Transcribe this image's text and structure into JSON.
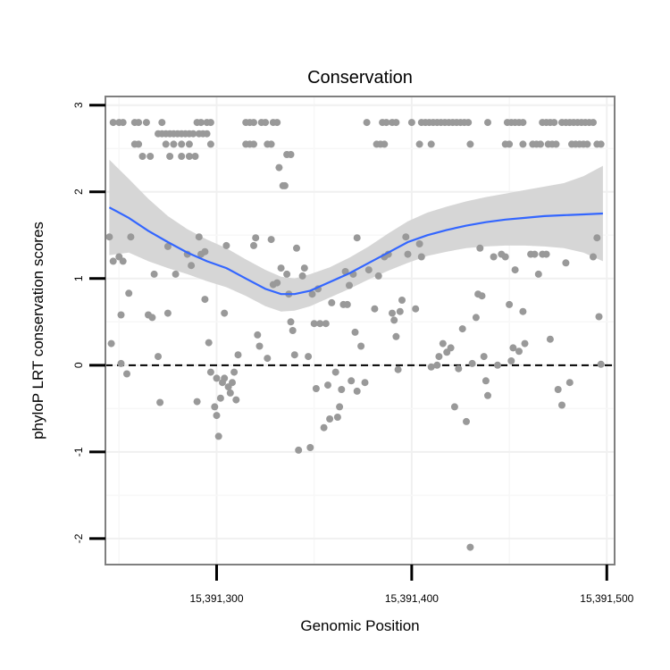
{
  "chart_data": {
    "type": "scatter",
    "title": "Conservation",
    "xlabel": "Genomic Position",
    "ylabel": "phyloP LRT conservation scores",
    "xlim": [
      15391243,
      15391504
    ],
    "ylim": [
      -2.3,
      3.1
    ],
    "x_ticks": [
      15391300,
      15391400,
      15391500
    ],
    "x_tick_labels": [
      "15,391,300",
      "15,391,400",
      "15,391,500"
    ],
    "y_ticks": [
      -2,
      -1,
      0,
      1,
      2,
      3
    ],
    "y_tick_labels": [
      "-2",
      "-1",
      "0",
      "1",
      "2",
      "3"
    ],
    "reference_line": {
      "y": 0,
      "style": "dashed"
    },
    "grid": true,
    "legend": "none",
    "colors": {
      "points": "#999999",
      "smooth": "#3366ff",
      "band": "#d4d4d4",
      "reference": "#000000",
      "frame": "#7f7f7f"
    },
    "points": [
      [
        15391247,
        2.8
      ],
      [
        15391250,
        2.8
      ],
      [
        15391252,
        2.8
      ],
      [
        15391258,
        2.8
      ],
      [
        15391260,
        2.8
      ],
      [
        15391272,
        2.8
      ],
      [
        15391290,
        2.8
      ],
      [
        15391292,
        2.8
      ],
      [
        15391295,
        2.8
      ],
      [
        15391297,
        2.8
      ],
      [
        15391315,
        2.8
      ],
      [
        15391317,
        2.8
      ],
      [
        15391319,
        2.8
      ],
      [
        15391323,
        2.8
      ],
      [
        15391325,
        2.8
      ],
      [
        15391329,
        2.8
      ],
      [
        15391331,
        2.8
      ],
      [
        15391377,
        2.8
      ],
      [
        15391385,
        2.8
      ],
      [
        15391387,
        2.8
      ],
      [
        15391390,
        2.8
      ],
      [
        15391392,
        2.8
      ],
      [
        15391400,
        2.8
      ],
      [
        15391405,
        2.8
      ],
      [
        15391407,
        2.8
      ],
      [
        15391409,
        2.8
      ],
      [
        15391411,
        2.8
      ],
      [
        15391413,
        2.8
      ],
      [
        15391415,
        2.8
      ],
      [
        15391417,
        2.8
      ],
      [
        15391419,
        2.8
      ],
      [
        15391421,
        2.8
      ],
      [
        15391423,
        2.8
      ],
      [
        15391425,
        2.8
      ],
      [
        15391427,
        2.8
      ],
      [
        15391429,
        2.8
      ],
      [
        15391439,
        2.8
      ],
      [
        15391449,
        2.8
      ],
      [
        15391451,
        2.8
      ],
      [
        15391453,
        2.8
      ],
      [
        15391455,
        2.8
      ],
      [
        15391457,
        2.8
      ],
      [
        15391467,
        2.8
      ],
      [
        15391469,
        2.8
      ],
      [
        15391471,
        2.8
      ],
      [
        15391473,
        2.8
      ],
      [
        15391477,
        2.8
      ],
      [
        15391479,
        2.8
      ],
      [
        15391481,
        2.8
      ],
      [
        15391483,
        2.8
      ],
      [
        15391485,
        2.8
      ],
      [
        15391487,
        2.8
      ],
      [
        15391489,
        2.8
      ],
      [
        15391491,
        2.8
      ],
      [
        15391493,
        2.8
      ],
      [
        15391264,
        2.8
      ],
      [
        15391270,
        2.67
      ],
      [
        15391272,
        2.67
      ],
      [
        15391274,
        2.67
      ],
      [
        15391276,
        2.67
      ],
      [
        15391278,
        2.67
      ],
      [
        15391280,
        2.67
      ],
      [
        15391282,
        2.67
      ],
      [
        15391284,
        2.67
      ],
      [
        15391286,
        2.67
      ],
      [
        15391288,
        2.67
      ],
      [
        15391291,
        2.67
      ],
      [
        15391293,
        2.67
      ],
      [
        15391295,
        2.67
      ],
      [
        15391258,
        2.55
      ],
      [
        15391260,
        2.55
      ],
      [
        15391274,
        2.55
      ],
      [
        15391278,
        2.55
      ],
      [
        15391282,
        2.55
      ],
      [
        15391286,
        2.55
      ],
      [
        15391297,
        2.55
      ],
      [
        15391315,
        2.55
      ],
      [
        15391317,
        2.55
      ],
      [
        15391319,
        2.55
      ],
      [
        15391326,
        2.55
      ],
      [
        15391328,
        2.55
      ],
      [
        15391382,
        2.55
      ],
      [
        15391384,
        2.55
      ],
      [
        15391386,
        2.55
      ],
      [
        15391404,
        2.55
      ],
      [
        15391410,
        2.55
      ],
      [
        15391430,
        2.55
      ],
      [
        15391448,
        2.55
      ],
      [
        15391450,
        2.55
      ],
      [
        15391457,
        2.55
      ],
      [
        15391462,
        2.55
      ],
      [
        15391464,
        2.55
      ],
      [
        15391466,
        2.55
      ],
      [
        15391470,
        2.55
      ],
      [
        15391472,
        2.55
      ],
      [
        15391474,
        2.55
      ],
      [
        15391482,
        2.55
      ],
      [
        15391484,
        2.55
      ],
      [
        15391486,
        2.55
      ],
      [
        15391488,
        2.55
      ],
      [
        15391490,
        2.55
      ],
      [
        15391495,
        2.55
      ],
      [
        15391497,
        2.55
      ],
      [
        15391262,
        2.41
      ],
      [
        15391266,
        2.41
      ],
      [
        15391276,
        2.41
      ],
      [
        15391282,
        2.41
      ],
      [
        15391286,
        2.41
      ],
      [
        15391289,
        2.41
      ],
      [
        15391336,
        2.43
      ],
      [
        15391338,
        2.43
      ],
      [
        15391332,
        2.28
      ],
      [
        15391334,
        2.07
      ],
      [
        15391335,
        2.07
      ],
      [
        15391245,
        1.48
      ],
      [
        15391247,
        1.2
      ],
      [
        15391250,
        1.25
      ],
      [
        15391252,
        1.2
      ],
      [
        15391256,
        1.48
      ],
      [
        15391255,
        0.83
      ],
      [
        15391251,
        0.58
      ],
      [
        15391246,
        0.25
      ],
      [
        15391251,
        0.02
      ],
      [
        15391254,
        -0.1
      ],
      [
        15391265,
        0.58
      ],
      [
        15391267,
        0.55
      ],
      [
        15391268,
        1.05
      ],
      [
        15391275,
        1.37
      ],
      [
        15391275,
        0.6
      ],
      [
        15391279,
        1.05
      ],
      [
        15391285,
        1.28
      ],
      [
        15391287,
        1.15
      ],
      [
        15391291,
        1.48
      ],
      [
        15391294,
        1.31
      ],
      [
        15391292,
        1.28
      ],
      [
        15391294,
        0.76
      ],
      [
        15391296,
        0.26
      ],
      [
        15391297,
        -0.08
      ],
      [
        15391299,
        -0.48
      ],
      [
        15391300,
        -0.58
      ],
      [
        15391301,
        -0.82
      ],
      [
        15391302,
        -0.38
      ],
      [
        15391303,
        -0.2
      ],
      [
        15391304,
        -0.15
      ],
      [
        15391305,
        1.38
      ],
      [
        15391306,
        -0.25
      ],
      [
        15391307,
        -0.32
      ],
      [
        15391308,
        -0.2
      ],
      [
        15391309,
        -0.08
      ],
      [
        15391310,
        -0.4
      ],
      [
        15391311,
        0.12
      ],
      [
        15391300,
        -0.15
      ],
      [
        15391304,
        0.6
      ],
      [
        15391290,
        -0.42
      ],
      [
        15391270,
        0.1
      ],
      [
        15391271,
        -0.43
      ],
      [
        15391319,
        1.38
      ],
      [
        15391320,
        1.47
      ],
      [
        15391321,
        0.35
      ],
      [
        15391322,
        0.22
      ],
      [
        15391326,
        0.08
      ],
      [
        15391328,
        1.45
      ],
      [
        15391329,
        0.93
      ],
      [
        15391331,
        0.95
      ],
      [
        15391333,
        1.12
      ],
      [
        15391336,
        1.05
      ],
      [
        15391337,
        0.82
      ],
      [
        15391338,
        0.5
      ],
      [
        15391339,
        0.4
      ],
      [
        15391340,
        0.12
      ],
      [
        15391341,
        1.35
      ],
      [
        15391342,
        -0.98
      ],
      [
        15391344,
        1.03
      ],
      [
        15391345,
        1.12
      ],
      [
        15391347,
        0.1
      ],
      [
        15391348,
        -0.95
      ],
      [
        15391349,
        0.82
      ],
      [
        15391350,
        0.48
      ],
      [
        15391351,
        -0.27
      ],
      [
        15391352,
        0.88
      ],
      [
        15391353,
        0.48
      ],
      [
        15391355,
        -0.72
      ],
      [
        15391356,
        0.48
      ],
      [
        15391357,
        -0.23
      ],
      [
        15391358,
        -0.62
      ],
      [
        15391359,
        0.72
      ],
      [
        15391361,
        -0.08
      ],
      [
        15391362,
        -0.6
      ],
      [
        15391363,
        -0.48
      ],
      [
        15391364,
        -0.28
      ],
      [
        15391365,
        0.7
      ],
      [
        15391366,
        1.08
      ],
      [
        15391367,
        0.7
      ],
      [
        15391368,
        0.92
      ],
      [
        15391369,
        -0.18
      ],
      [
        15391370,
        1.05
      ],
      [
        15391372,
        1.47
      ],
      [
        15391371,
        0.38
      ],
      [
        15391372,
        -0.3
      ],
      [
        15391374,
        0.22
      ],
      [
        15391376,
        -0.2
      ],
      [
        15391378,
        1.1
      ],
      [
        15391381,
        0.65
      ],
      [
        15391383,
        1.03
      ],
      [
        15391386,
        1.25
      ],
      [
        15391388,
        1.28
      ],
      [
        15391390,
        0.6
      ],
      [
        15391391,
        0.52
      ],
      [
        15391392,
        0.33
      ],
      [
        15391393,
        -0.05
      ],
      [
        15391394,
        0.62
      ],
      [
        15391395,
        0.75
      ],
      [
        15391397,
        1.48
      ],
      [
        15391398,
        1.28
      ],
      [
        15391402,
        0.65
      ],
      [
        15391404,
        1.4
      ],
      [
        15391405,
        1.25
      ],
      [
        15391410,
        -0.02
      ],
      [
        15391413,
        0.0
      ],
      [
        15391414,
        0.1
      ],
      [
        15391416,
        0.25
      ],
      [
        15391418,
        0.15
      ],
      [
        15391420,
        0.2
      ],
      [
        15391422,
        -0.48
      ],
      [
        15391424,
        -0.04
      ],
      [
        15391426,
        0.42
      ],
      [
        15391428,
        -0.65
      ],
      [
        15391430,
        -2.1
      ],
      [
        15391431,
        0.02
      ],
      [
        15391433,
        0.55
      ],
      [
        15391434,
        0.82
      ],
      [
        15391435,
        1.35
      ],
      [
        15391436,
        0.8
      ],
      [
        15391437,
        0.1
      ],
      [
        15391438,
        -0.18
      ],
      [
        15391439,
        -0.35
      ],
      [
        15391442,
        1.25
      ],
      [
        15391444,
        0.0
      ],
      [
        15391446,
        1.28
      ],
      [
        15391448,
        1.25
      ],
      [
        15391450,
        0.7
      ],
      [
        15391451,
        0.05
      ],
      [
        15391452,
        0.2
      ],
      [
        15391453,
        1.1
      ],
      [
        15391455,
        0.16
      ],
      [
        15391457,
        0.62
      ],
      [
        15391458,
        0.25
      ],
      [
        15391461,
        1.28
      ],
      [
        15391463,
        1.28
      ],
      [
        15391465,
        1.05
      ],
      [
        15391467,
        1.28
      ],
      [
        15391469,
        1.28
      ],
      [
        15391471,
        0.3
      ],
      [
        15391475,
        -0.28
      ],
      [
        15391477,
        -0.46
      ],
      [
        15391479,
        1.18
      ],
      [
        15391481,
        -0.2
      ],
      [
        15391493,
        1.25
      ],
      [
        15391495,
        1.47
      ],
      [
        15391496,
        0.56
      ],
      [
        15391497,
        0.01
      ]
    ],
    "smooth": [
      [
        15391245,
        1.82
      ],
      [
        15391255,
        1.7
      ],
      [
        15391265,
        1.55
      ],
      [
        15391275,
        1.42
      ],
      [
        15391285,
        1.3
      ],
      [
        15391295,
        1.2
      ],
      [
        15391305,
        1.12
      ],
      [
        15391315,
        1.0
      ],
      [
        15391325,
        0.88
      ],
      [
        15391333,
        0.82
      ],
      [
        15391340,
        0.82
      ],
      [
        15391348,
        0.86
      ],
      [
        15391358,
        0.96
      ],
      [
        15391368,
        1.06
      ],
      [
        15391378,
        1.18
      ],
      [
        15391388,
        1.3
      ],
      [
        15391398,
        1.42
      ],
      [
        15391408,
        1.5
      ],
      [
        15391418,
        1.56
      ],
      [
        15391428,
        1.61
      ],
      [
        15391438,
        1.65
      ],
      [
        15391448,
        1.68
      ],
      [
        15391458,
        1.7
      ],
      [
        15391468,
        1.72
      ],
      [
        15391478,
        1.73
      ],
      [
        15391488,
        1.74
      ],
      [
        15391498,
        1.75
      ]
    ],
    "band_upper": [
      [
        15391245,
        2.37
      ],
      [
        15391255,
        2.15
      ],
      [
        15391265,
        1.92
      ],
      [
        15391275,
        1.72
      ],
      [
        15391285,
        1.57
      ],
      [
        15391295,
        1.45
      ],
      [
        15391305,
        1.35
      ],
      [
        15391315,
        1.22
      ],
      [
        15391325,
        1.1
      ],
      [
        15391333,
        1.02
      ],
      [
        15391340,
        1.0
      ],
      [
        15391348,
        1.05
      ],
      [
        15391358,
        1.13
      ],
      [
        15391368,
        1.24
      ],
      [
        15391378,
        1.37
      ],
      [
        15391388,
        1.52
      ],
      [
        15391398,
        1.66
      ],
      [
        15391408,
        1.76
      ],
      [
        15391418,
        1.83
      ],
      [
        15391428,
        1.89
      ],
      [
        15391438,
        1.94
      ],
      [
        15391448,
        1.98
      ],
      [
        15391458,
        2.02
      ],
      [
        15391468,
        2.06
      ],
      [
        15391478,
        2.1
      ],
      [
        15391488,
        2.18
      ],
      [
        15391498,
        2.3
      ]
    ],
    "band_lower": [
      [
        15391245,
        1.27
      ],
      [
        15391255,
        1.3
      ],
      [
        15391265,
        1.2
      ],
      [
        15391275,
        1.12
      ],
      [
        15391285,
        1.05
      ],
      [
        15391295,
        0.97
      ],
      [
        15391305,
        0.9
      ],
      [
        15391315,
        0.8
      ],
      [
        15391325,
        0.68
      ],
      [
        15391333,
        0.62
      ],
      [
        15391340,
        0.63
      ],
      [
        15391348,
        0.68
      ],
      [
        15391358,
        0.78
      ],
      [
        15391368,
        0.88
      ],
      [
        15391378,
        0.99
      ],
      [
        15391388,
        1.09
      ],
      [
        15391398,
        1.18
      ],
      [
        15391408,
        1.26
      ],
      [
        15391418,
        1.31
      ],
      [
        15391428,
        1.35
      ],
      [
        15391438,
        1.37
      ],
      [
        15391448,
        1.38
      ],
      [
        15391458,
        1.38
      ],
      [
        15391468,
        1.37
      ],
      [
        15391478,
        1.35
      ],
      [
        15391488,
        1.3
      ],
      [
        15391498,
        1.2
      ]
    ]
  }
}
